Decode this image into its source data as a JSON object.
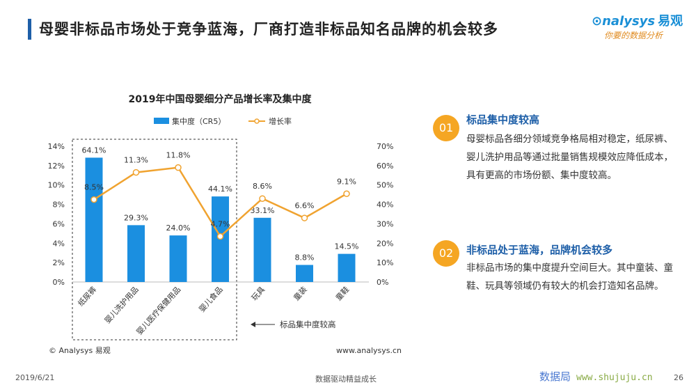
{
  "page": {
    "title": "母婴非标品市场处于竞争蓝海，厂商打造非标品知名品牌的机会较多",
    "logo_brand": "nalysys",
    "logo_cn": "易观",
    "logo_sub": "你要的数据分析",
    "date": "2019/6/21",
    "center_footer": "数据驱动精益成长",
    "page_number": "26",
    "watermark_site": "数据局",
    "watermark_url": "www.shujuju.cn"
  },
  "chart_meta": {
    "copyright": "© Analysys 易观",
    "source_url": "www.analysys.cn",
    "annotation": "标品集中度较高",
    "left_ticks": [
      "0%",
      "2%",
      "4%",
      "6%",
      "8%",
      "10%",
      "12%",
      "14%"
    ],
    "right_ticks": [
      "0%",
      "10%",
      "20%",
      "30%",
      "40%",
      "50%",
      "60%",
      "70%"
    ],
    "bar_label_texts": [
      "64.1%",
      "29.3%",
      "24.0%",
      "44.1%",
      "33.1%",
      "8.8%",
      "14.5%"
    ],
    "line_label_texts": [
      "8.5%",
      "11.3%",
      "11.8%",
      "4.7%",
      "8.6%",
      "6.6%",
      "9.1%"
    ]
  },
  "chart_data": {
    "type": "bar",
    "title": "2019年中国母婴细分产品增长率及集中度",
    "categories": [
      "纸尿裤",
      "婴儿洗护用品",
      "婴儿医疗保健用品",
      "婴儿食品",
      "玩具",
      "童装",
      "童鞋"
    ],
    "series": [
      {
        "name": "集中度（CR5）",
        "type": "bar",
        "axis": "right",
        "values": [
          64.1,
          29.3,
          24.0,
          44.1,
          33.1,
          8.8,
          14.5
        ],
        "unit": "%"
      },
      {
        "name": "增长率",
        "type": "line",
        "axis": "left",
        "values": [
          8.5,
          11.3,
          11.8,
          4.7,
          8.6,
          6.6,
          9.1
        ],
        "unit": "%"
      }
    ],
    "left_ylim": [
      0,
      14
    ],
    "right_ylim": [
      0,
      70
    ],
    "legend_position": "top",
    "grid": false,
    "colors": {
      "bar": "#1b8fe0",
      "line": "#f0a330"
    },
    "highlight_group": [
      "纸尿裤",
      "婴儿洗护用品",
      "婴儿医疗保健用品",
      "婴儿食品"
    ]
  },
  "points": [
    {
      "num": "01",
      "title": "标品集中度较高",
      "text": "母婴标品各细分领域竞争格局相对稳定，纸尿裤、婴儿洗护用品等通过批量销售规模效应降低成本，具有更高的市场份额、集中度较高。"
    },
    {
      "num": "02",
      "title": "非标品处于蓝海，品牌机会较多",
      "text": "非标品市场的集中度提升空间巨大。其中童装、童鞋、玩具等领域仍有较大的机会打造知名品牌。"
    }
  ]
}
